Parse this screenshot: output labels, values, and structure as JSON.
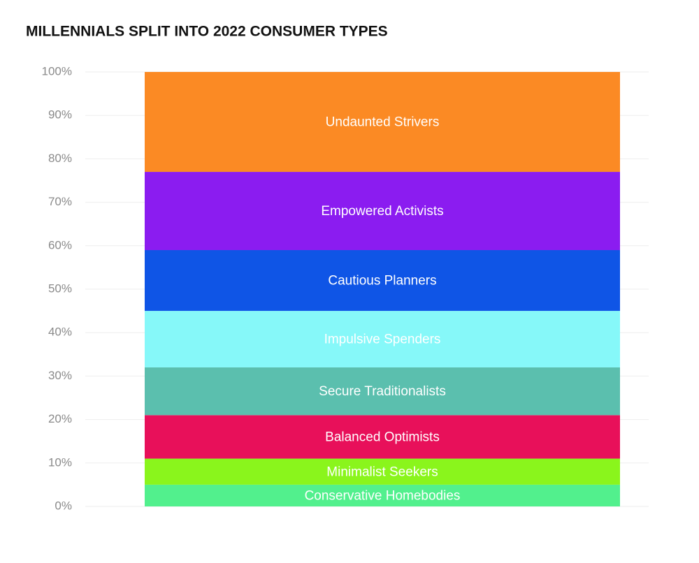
{
  "chart_data": {
    "type": "stacked-bar",
    "title": "MILLENNIALS SPLIT INTO 2022 CONSUMER TYPES",
    "series": [
      {
        "name": "Conservative Homebodies",
        "color": "#52f08d",
        "values": [
          5
        ]
      },
      {
        "name": "Minimalist Seekers",
        "color": "#8af51c",
        "values": [
          6
        ]
      },
      {
        "name": "Balanced Optimists",
        "color": "#e8105a",
        "values": [
          10
        ]
      },
      {
        "name": "Secure Traditionalists",
        "color": "#5bbfae",
        "values": [
          11
        ]
      },
      {
        "name": "Impulsive Spenders",
        "color": "#86f8f9",
        "values": [
          13
        ]
      },
      {
        "name": "Cautious Planners",
        "color": "#0f55e6",
        "values": [
          14
        ]
      },
      {
        "name": "Empowered Activists",
        "color": "#8b1cf0",
        "values": [
          18
        ]
      },
      {
        "name": "Undaunted Strivers",
        "color": "#fb8a24",
        "values": [
          23
        ]
      }
    ],
    "ylim": [
      0,
      100
    ],
    "yticks": [
      {
        "value": 0,
        "label": "0%"
      },
      {
        "value": 10,
        "label": "10%"
      },
      {
        "value": 20,
        "label": "20%"
      },
      {
        "value": 30,
        "label": "30%"
      },
      {
        "value": 40,
        "label": "40%"
      },
      {
        "value": 50,
        "label": "50%"
      },
      {
        "value": 60,
        "label": "60%"
      },
      {
        "value": 70,
        "label": "70%"
      },
      {
        "value": 80,
        "label": "80%"
      },
      {
        "value": 90,
        "label": "90%"
      },
      {
        "value": 100,
        "label": "100%"
      }
    ],
    "grid": true
  }
}
